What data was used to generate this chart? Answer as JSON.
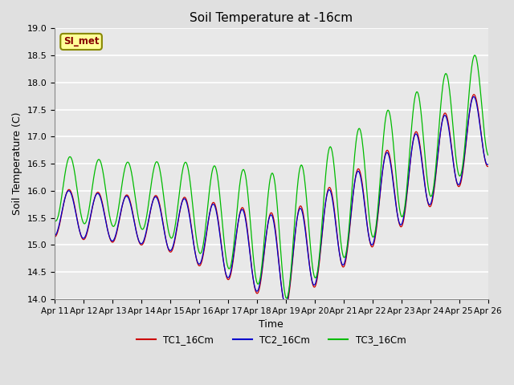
{
  "title": "Soil Temperature at -16cm",
  "xlabel": "Time",
  "ylabel": "Soil Temperature (C)",
  "ylim": [
    14.0,
    19.0
  ],
  "yticks": [
    14.0,
    14.5,
    15.0,
    15.5,
    16.0,
    16.5,
    17.0,
    17.5,
    18.0,
    18.5,
    19.0
  ],
  "xtick_labels": [
    "Apr 11",
    "Apr 12",
    "Apr 13",
    "Apr 14",
    "Apr 15",
    "Apr 16",
    "Apr 17",
    "Apr 18",
    "Apr 19",
    "Apr 20",
    "Apr 21",
    "Apr 22",
    "Apr 23",
    "Apr 24",
    "Apr 25",
    "Apr 26"
  ],
  "tc1_color": "#cc0000",
  "tc2_color": "#0000cc",
  "tc3_color": "#00bb00",
  "bg_color": "#e0e0e0",
  "plot_bg_color": "#e8e8e8",
  "label_box_text": "SI_met",
  "label_box_facecolor": "#ffff99",
  "label_box_edgecolor": "#888800",
  "label_text_color": "#880000",
  "legend_labels": [
    "TC1_16Cm",
    "TC2_16Cm",
    "TC3_16Cm"
  ],
  "n_days": 16,
  "samples_per_day": 48,
  "figsize": [
    6.4,
    4.8
  ],
  "dpi": 100
}
